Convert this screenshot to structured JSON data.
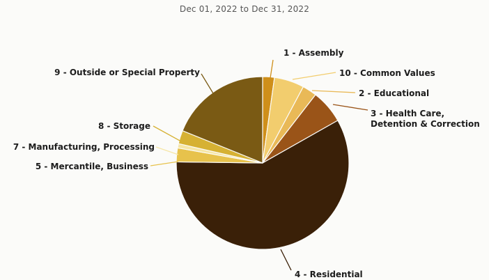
{
  "subtitle": "Dec 01, 2022 to Dec 31, 2022",
  "chart_data": {
    "type": "pie",
    "title": "",
    "start_angle_deg": 0,
    "direction": "clockwise",
    "slices": [
      {
        "label": "1 - Assembly",
        "value": 2.2,
        "color": "#cf8f1a"
      },
      {
        "label": "10 - Common Values",
        "value": 5.6,
        "color": "#f2cd6e"
      },
      {
        "label": "2 - Educational",
        "value": 2.7,
        "color": "#e9b957"
      },
      {
        "label": [
          "3 - Health Care,",
          "Detention & Correction"
        ],
        "value": 6.3,
        "color": "#9a5418"
      },
      {
        "label": "4 - Residential",
        "value": 58.4,
        "color": "#3a2008"
      },
      {
        "label": "5 - Mercantile, Business",
        "value": 2.6,
        "color": "#e7c24c"
      },
      {
        "label": "7 - Manufacturing, Processing",
        "value": 0.8,
        "color": "#f6e6a6"
      },
      {
        "label": "8 - Storage",
        "value": 2.5,
        "color": "#d6b133"
      },
      {
        "label": "9 - Outside or Special Property",
        "value": 18.9,
        "color": "#7a5a14"
      }
    ]
  }
}
